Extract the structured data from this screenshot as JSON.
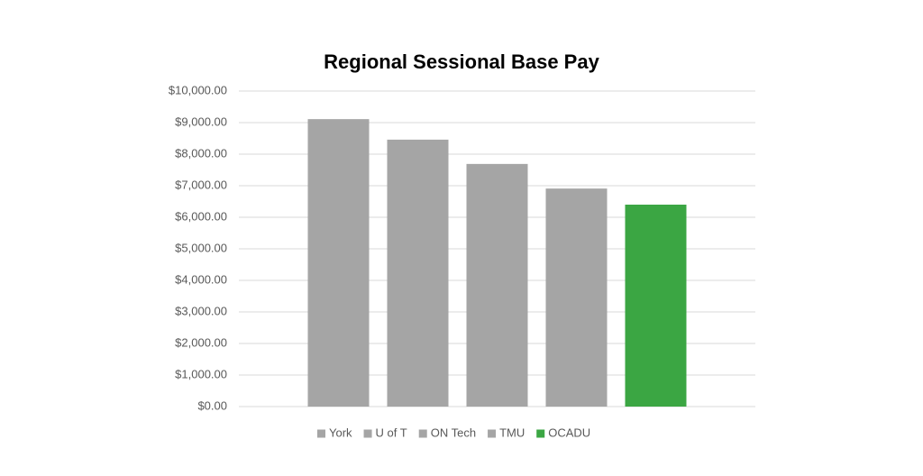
{
  "chart_data": {
    "type": "bar",
    "title": "Regional Sessional Base Pay",
    "categories": [
      null
    ],
    "series": [
      {
        "name": "York",
        "color": "#a5a5a5",
        "values": [
          9110
        ]
      },
      {
        "name": "U of T",
        "color": "#a5a5a5",
        "values": [
          8460
        ]
      },
      {
        "name": "ON Tech",
        "color": "#a5a5a5",
        "values": [
          7690
        ]
      },
      {
        "name": "TMU",
        "color": "#a5a5a5",
        "values": [
          6910
        ]
      },
      {
        "name": "OCADU",
        "color": "#3ba643",
        "values": [
          6400
        ]
      }
    ],
    "ylim": [
      0,
      10000
    ],
    "yticks": [
      {
        "value": 0,
        "label": "$0.00"
      },
      {
        "value": 1000,
        "label": "$1,000.00"
      },
      {
        "value": 2000,
        "label": "$2,000.00"
      },
      {
        "value": 3000,
        "label": "$3,000.00"
      },
      {
        "value": 4000,
        "label": "$4,000.00"
      },
      {
        "value": 5000,
        "label": "$5,000.00"
      },
      {
        "value": 6000,
        "label": "$6,000.00"
      },
      {
        "value": 7000,
        "label": "$7,000.00"
      },
      {
        "value": 8000,
        "label": "$8,000.00"
      },
      {
        "value": 9000,
        "label": "$9,000.00"
      },
      {
        "value": 10000,
        "label": "$10,000.00"
      }
    ],
    "grid": true,
    "legend": "bottom"
  }
}
